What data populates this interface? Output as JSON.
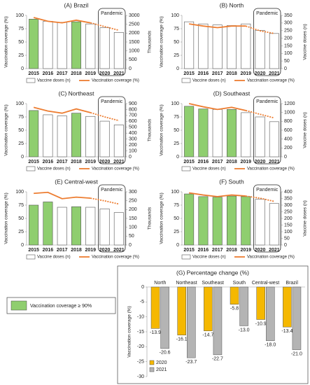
{
  "chart_data": [
    {
      "type": "combo",
      "title": "(A) Brazil",
      "annotation": "Pandemic",
      "categories": [
        "2015",
        "2016",
        "2017",
        "2018",
        "2019",
        "2020",
        "2021"
      ],
      "ylabel": "Vaccination coverage (%)",
      "y2label": "Thousands",
      "ylim": [
        0,
        100
      ],
      "yticks": [
        0,
        25,
        50,
        75,
        100
      ],
      "y2lim": [
        0,
        3000
      ],
      "y2ticks": [
        0,
        500,
        1000,
        1500,
        2000,
        2500,
        3000
      ],
      "series": [
        {
          "name": "Vaccine doses (n)",
          "axis": "y2",
          "color": "#ffffff",
          "values": [
            2790,
            2670,
            2610,
            2640,
            2520,
            2310,
            2040
          ],
          "colors": [
            "#8fce6f",
            "#ffffff",
            "#ffffff",
            "#8fce6f",
            "#ffffff",
            "#ffffff",
            "#ffffff"
          ]
        },
        {
          "name": "Vaccination coverage (%)",
          "color": "#ed7d31",
          "values": [
            96,
            89,
            86,
            91,
            86,
            79,
            72
          ]
        }
      ]
    },
    {
      "type": "combo",
      "title": "(B) North",
      "annotation": "Pandemic",
      "categories": [
        "2015",
        "2016",
        "2017",
        "2018",
        "2019",
        "2020",
        "2021"
      ],
      "ylabel": "Vaccination coverage (%)",
      "y2label": "Vaccine doses (n)",
      "ylim": [
        0,
        100
      ],
      "yticks": [
        0,
        25,
        50,
        75,
        100
      ],
      "y2lim": [
        0,
        350
      ],
      "y2ticks": [
        0,
        50,
        100,
        150,
        200,
        250,
        300,
        350
      ],
      "series": [
        {
          "name": "Vaccine doses (n)",
          "axis": "y2",
          "color": "#ffffff",
          "values": [
            308,
            294,
            287,
            283,
            294,
            252,
            231
          ],
          "colors": [
            "#ffffff",
            "#ffffff",
            "#ffffff",
            "#ffffff",
            "#ffffff",
            "#ffffff",
            "#ffffff"
          ]
        },
        {
          "name": "Vaccination coverage (%)",
          "color": "#ed7d31",
          "values": [
            84,
            80,
            77,
            80,
            80,
            71,
            66
          ]
        }
      ]
    },
    {
      "type": "combo",
      "title": "(C) Northeast",
      "annotation": "Pandemic",
      "categories": [
        "2015",
        "2016",
        "2017",
        "2018",
        "2019",
        "2020",
        "2021"
      ],
      "ylabel": "Vaccination coverage (%)",
      "y2label": "Thousands",
      "ylim": [
        0,
        100
      ],
      "yticks": [
        0,
        25,
        50,
        75,
        100
      ],
      "y2lim": [
        0,
        900
      ],
      "y2ticks": [
        0,
        100,
        200,
        300,
        400,
        500,
        600,
        700,
        800,
        900
      ],
      "series": [
        {
          "name": "Vaccine doses (n)",
          "axis": "y2",
          "color": "#ffffff",
          "values": [
            783,
            711,
            693,
            738,
            684,
            603,
            540
          ],
          "colors": [
            "#8fce6f",
            "#ffffff",
            "#ffffff",
            "#8fce6f",
            "#ffffff",
            "#ffffff",
            "#ffffff"
          ]
        },
        {
          "name": "Vaccination coverage (%)",
          "color": "#ed7d31",
          "values": [
            93,
            86,
            82,
            90,
            83,
            75,
            68
          ]
        }
      ]
    },
    {
      "type": "combo",
      "title": "(D) Southeast",
      "annotation": "Pandemic",
      "categories": [
        "2015",
        "2016",
        "2017",
        "2018",
        "2019",
        "2020",
        "2021"
      ],
      "ylabel": "Vaccination coverage (%)",
      "y2label": "Vaccine  doses (n)",
      "ylim": [
        0,
        100
      ],
      "yticks": [
        0,
        25,
        50,
        75,
        100
      ],
      "y2lim": [
        0,
        1200
      ],
      "y2ticks": [
        0,
        200,
        400,
        600,
        800,
        1000,
        1200
      ],
      "series": [
        {
          "name": "Vaccine doses (n)",
          "axis": "y2",
          "color": "#ffffff",
          "values": [
            1140,
            1080,
            1068,
            1068,
            996,
            900,
            792
          ],
          "colors": [
            "#8fce6f",
            "#8fce6f",
            "#ffffff",
            "#8fce6f",
            "#ffffff",
            "#ffffff",
            "#ffffff"
          ]
        },
        {
          "name": "Vaccination coverage (%)",
          "color": "#ed7d31",
          "values": [
            100,
            94,
            89,
            93,
            87,
            80,
            73
          ]
        }
      ]
    },
    {
      "type": "combo",
      "title": "(E) Central-west",
      "annotation": "Pandemic",
      "categories": [
        "2015",
        "2016",
        "2017",
        "2018",
        "2019",
        "2020",
        "2021"
      ],
      "ylabel": "Vaccination coverage (%)",
      "y2label": "Thousands",
      "ylim": [
        0,
        100
      ],
      "yticks": [
        0,
        25,
        50,
        75,
        100
      ],
      "y2lim": [
        0,
        300
      ],
      "y2ticks": [
        0,
        50,
        100,
        150,
        200,
        250,
        300
      ],
      "series": [
        {
          "name": "Vaccine doses (n)",
          "axis": "y2",
          "color": "#ffffff",
          "values": [
            225,
            243,
            213,
            216,
            213,
            204,
            183
          ],
          "colors": [
            "#8fce6f",
            "#8fce6f",
            "#ffffff",
            "#8fce6f",
            "#ffffff",
            "#ffffff",
            "#ffffff"
          ]
        },
        {
          "name": "Vaccination coverage (%)",
          "color": "#ed7d31",
          "values": [
            97,
            99,
            87,
            90,
            88,
            83,
            77
          ]
        }
      ]
    },
    {
      "type": "combo",
      "title": "(F) South",
      "annotation": "Pandemic",
      "categories": [
        "2015",
        "2016",
        "2017",
        "2018",
        "2019",
        "2020",
        "2021"
      ],
      "ylabel": "Vaccination coverage (%)",
      "y2label": "Vaccine doses (n)",
      "ylim": [
        0,
        100
      ],
      "yticks": [
        0,
        25,
        50,
        75,
        100
      ],
      "y2lim": [
        0,
        400
      ],
      "y2ticks": [
        0,
        50,
        100,
        150,
        200,
        250,
        300,
        350,
        400
      ],
      "series": [
        {
          "name": "Vaccine doses (n)",
          "axis": "y2",
          "color": "#ffffff",
          "values": [
            384,
            364,
            360,
            368,
            364,
            344,
            312
          ],
          "colors": [
            "#8fce6f",
            "#8fce6f",
            "#8fce6f",
            "#8fce6f",
            "#8fce6f",
            "#ffffff",
            "#ffffff"
          ]
        },
        {
          "name": "Vaccination coverage (%)",
          "color": "#ed7d31",
          "values": [
            98,
            94,
            91,
            94,
            92,
            88,
            82
          ]
        }
      ]
    },
    {
      "type": "bar",
      "title": "(G) Percentage change (%)",
      "categories": [
        "North",
        "Northeast",
        "Southeast",
        "South",
        "Central-west",
        "Brazil"
      ],
      "ylabel": "Vaccination coverage (%)",
      "ylim": [
        -30,
        0
      ],
      "yticks": [
        0,
        -5,
        -10,
        -15,
        -20,
        -25,
        -30
      ],
      "series": [
        {
          "name": "2020",
          "color": "#f5b800",
          "values": [
            -13.9,
            -16.1,
            -14.7,
            -5.8,
            -10.9,
            -13.4
          ],
          "value_labels": [
            "-13.9",
            "-16.1",
            "-14.7",
            "-5.8",
            "-10.9",
            "-13.4"
          ]
        },
        {
          "name": "2021",
          "color": "#b4b4b4",
          "values": [
            -20.6,
            -23.7,
            -22.7,
            -13,
            -18,
            -21
          ],
          "value_labels": [
            "-20.6",
            "-23.7",
            "-22.7",
            "-13.0",
            "-18.0",
            "-21.0"
          ]
        }
      ]
    }
  ],
  "note_legend": {
    "label": "Vaccination coverage ≥ 90%",
    "color": "#8fce6f"
  }
}
